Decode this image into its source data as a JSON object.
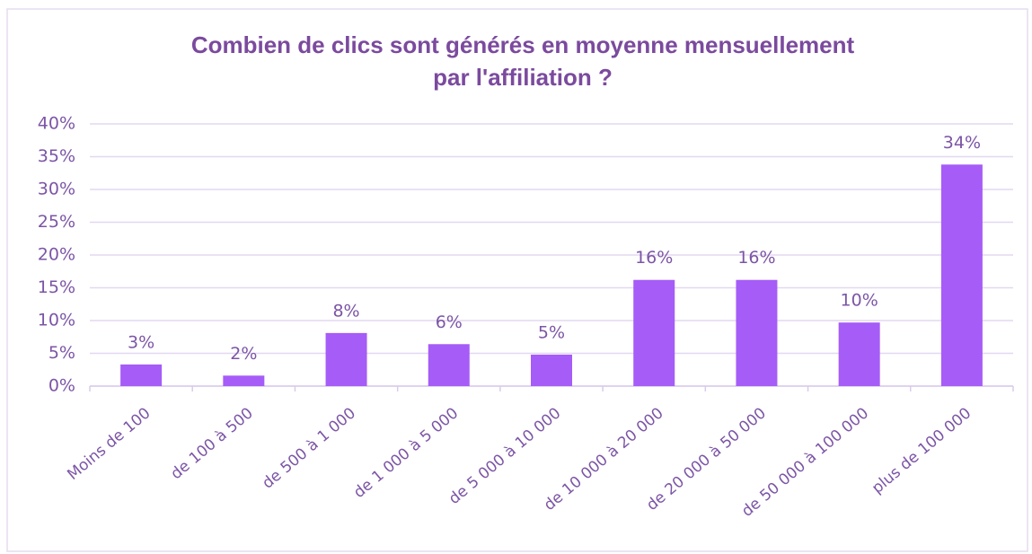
{
  "chart_data": {
    "type": "bar",
    "title": [
      "Combien de clics sont générés en moyenne mensuellement",
      "par l'affiliation ?"
    ],
    "categories": [
      "Moins de 100",
      "de 100 à 500",
      "de 500 à 1 000",
      "de 1 000 à 5 000",
      "de 5 000 à 10 000",
      "de 10 000 à 20 000",
      "de 20 000 à 50 000",
      "de 50 000 à 100 000",
      "plus de 100 000"
    ],
    "values": [
      3.3,
      1.6,
      8.1,
      6.4,
      4.8,
      16.2,
      16.2,
      9.7,
      33.8
    ],
    "value_labels": [
      "3%",
      "2%",
      "8%",
      "6%",
      "5%",
      "16%",
      "16%",
      "10%",
      "34%"
    ],
    "color": "#a65cf7",
    "ylim": [
      0,
      40
    ],
    "yticks": [
      {
        "value": 0,
        "label": "0%"
      },
      {
        "value": 5,
        "label": "5%"
      },
      {
        "value": 10,
        "label": "10%"
      },
      {
        "value": 15,
        "label": "15%"
      },
      {
        "value": 20,
        "label": "20%"
      },
      {
        "value": 25,
        "label": "25%"
      },
      {
        "value": 30,
        "label": "30%"
      },
      {
        "value": 35,
        "label": "35%"
      },
      {
        "value": 40,
        "label": "40%"
      }
    ],
    "grid": true
  }
}
